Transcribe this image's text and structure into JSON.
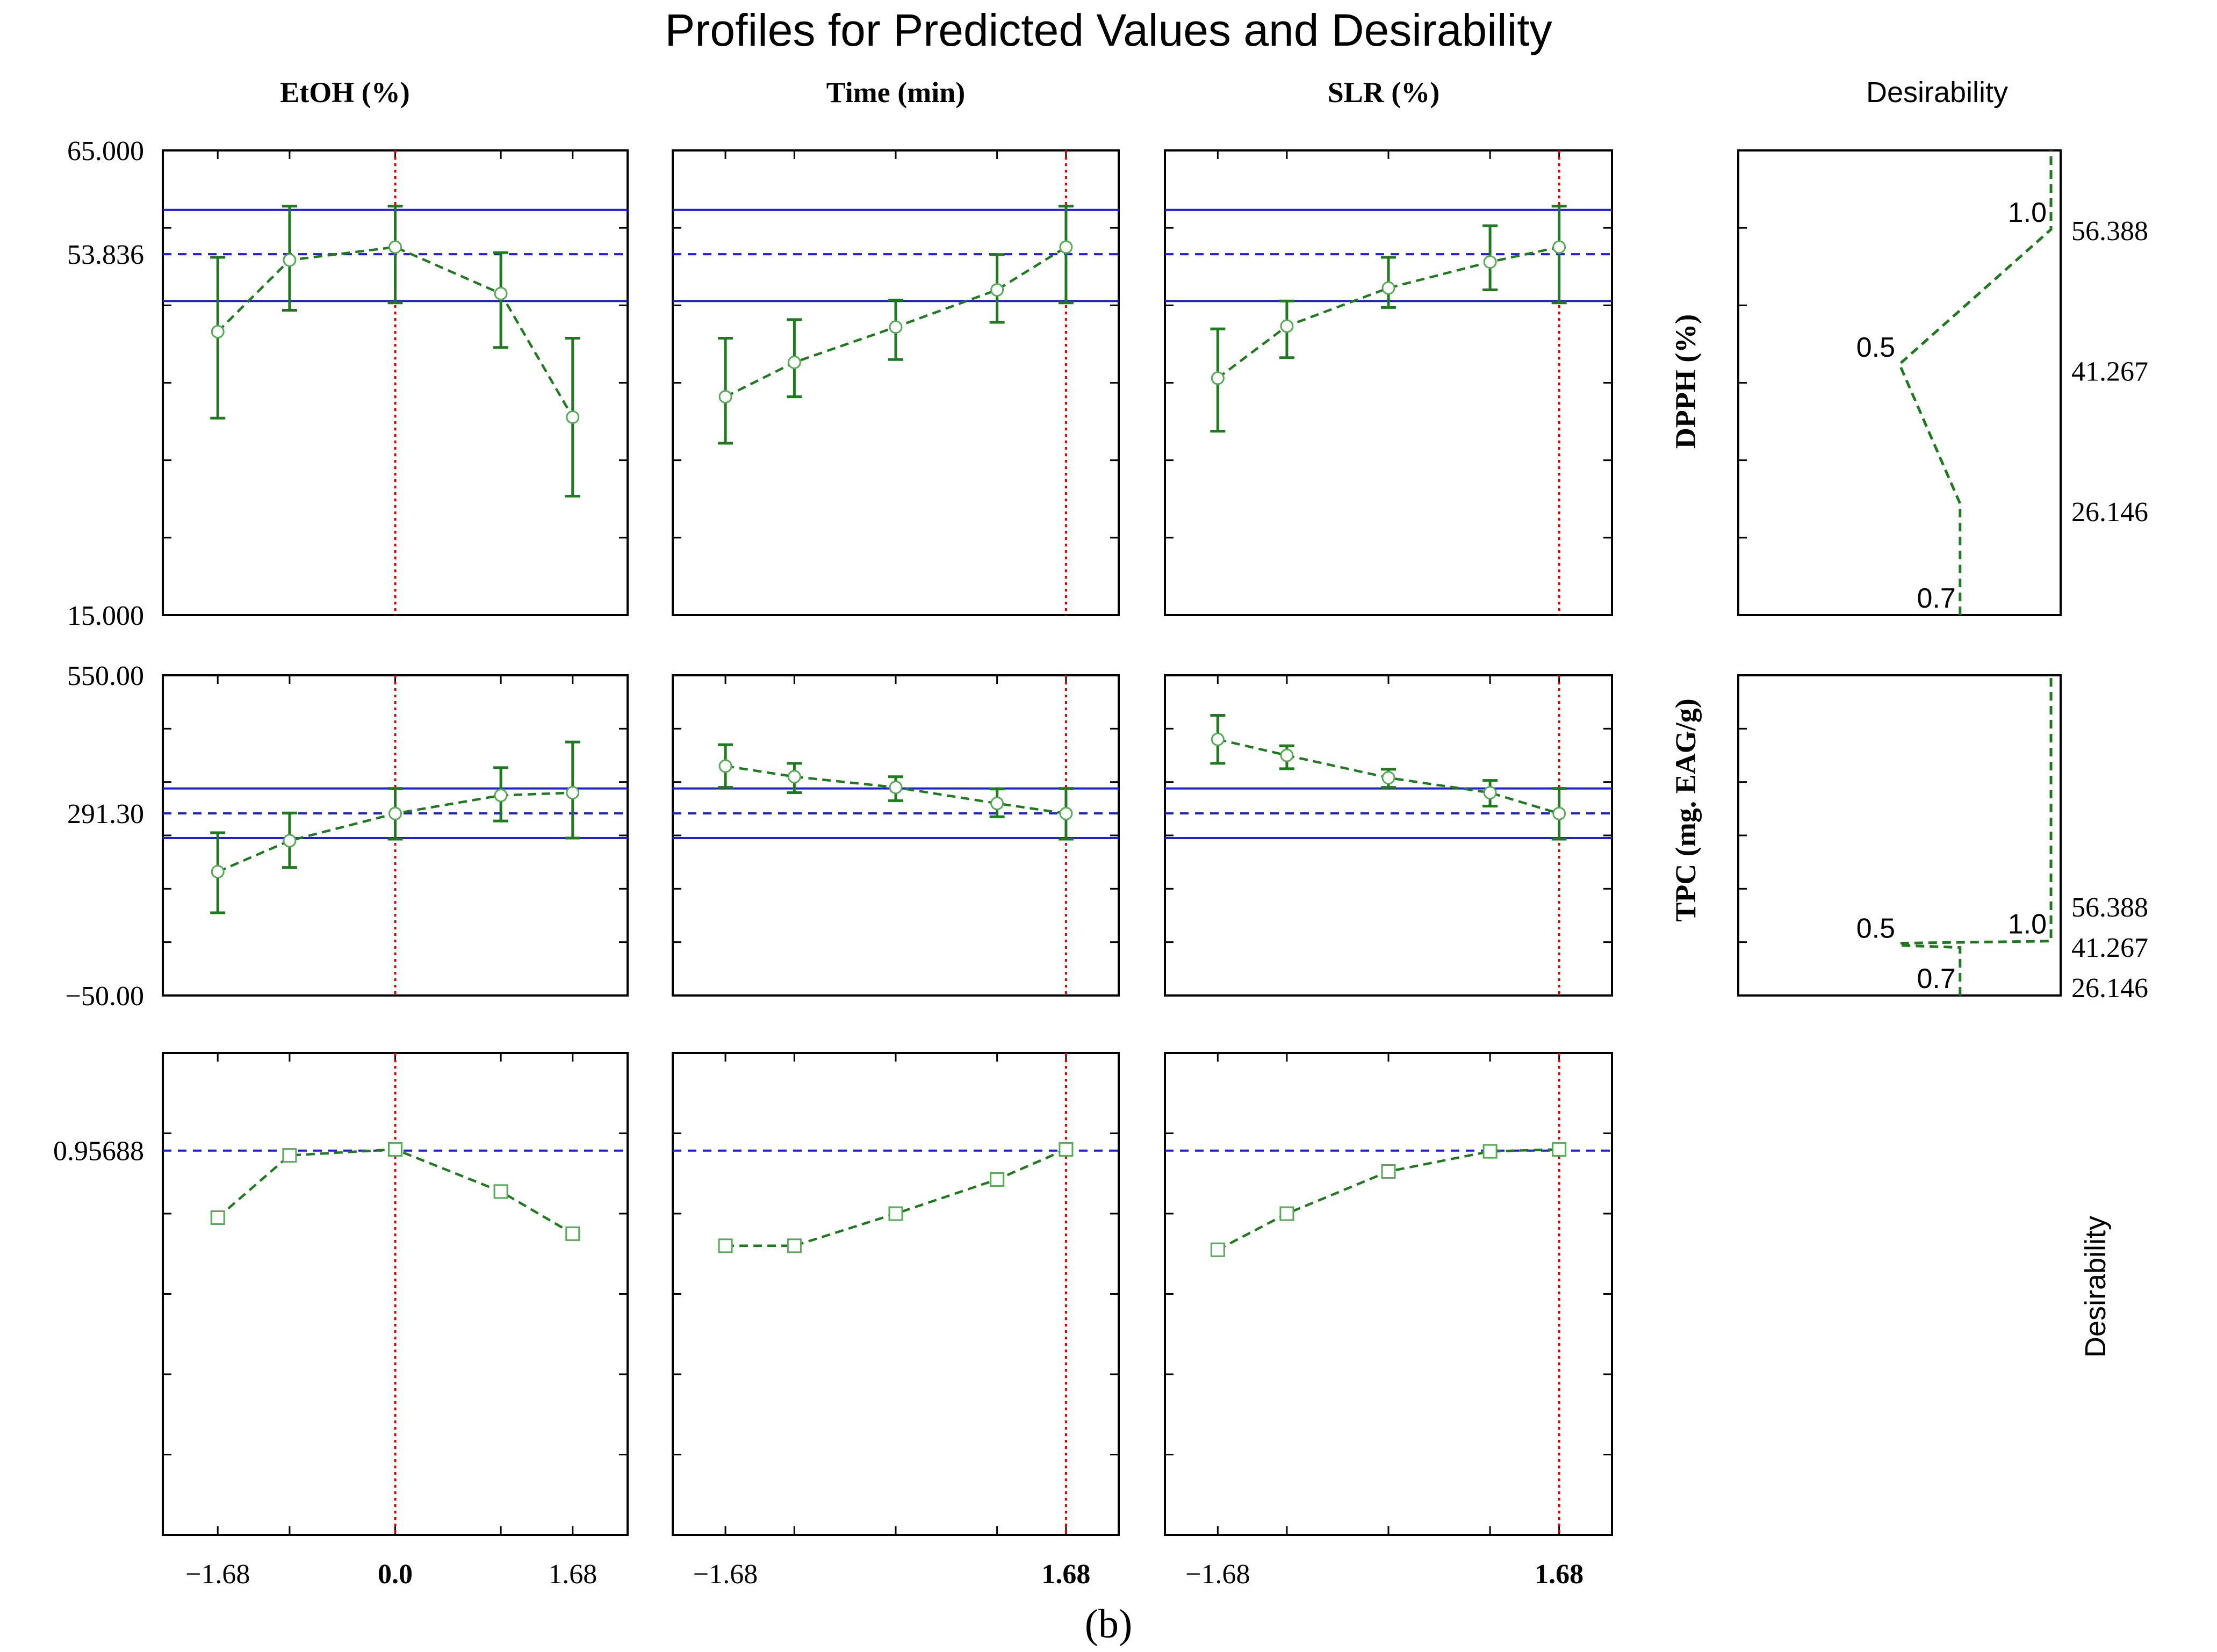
{
  "chart_data": {
    "type": "line",
    "title": "Profiles for Predicted Values and Desirability",
    "subfigure_label": "(b)",
    "column_headers": [
      "EtOH (%)",
      "Time (min)",
      "SLR (%)",
      "Desirability"
    ],
    "x_levels": [
      -1.68,
      -1,
      0,
      1,
      1.68
    ],
    "x_tick_labels": [
      [
        "−1.68",
        "0.0",
        "1.68"
      ],
      [
        "−1.68",
        "1.68"
      ],
      [
        "−1.68",
        "1.68"
      ]
    ],
    "current_levels": [
      0,
      1.68,
      1.68
    ],
    "current_level_labels": [
      "0.0",
      "1.68",
      "1.68"
    ],
    "responses": [
      {
        "name": "DPPH (%)",
        "ylim": [
          15,
          65
        ],
        "y_tick_labels": [
          "65.000",
          "53.836",
          "15.000"
        ],
        "y_tick_values": [
          65,
          53.836,
          15
        ],
        "predicted_at_current": 53.836,
        "ci_band": [
          48.8,
          58.6
        ],
        "series": [
          {
            "factor": "EtOH (%)",
            "values": [
              45.5,
              53.2,
              54.6,
              49.6,
              36.3
            ],
            "lower": [
              36.2,
              47.8,
              48.6,
              43.8,
              27.8
            ],
            "upper": [
              53.5,
              59.0,
              59.0,
              54.0,
              44.8
            ]
          },
          {
            "factor": "Time (min)",
            "values": [
              38.5,
              42.2,
              46.0,
              50.0,
              54.6
            ],
            "lower": [
              33.5,
              38.5,
              42.5,
              46.5,
              48.6
            ],
            "upper": [
              44.8,
              46.8,
              48.9,
              53.8,
              59.0
            ]
          },
          {
            "factor": "SLR (%)",
            "values": [
              40.5,
              46.1,
              50.2,
              53.0,
              54.6
            ],
            "lower": [
              34.8,
              42.7,
              48.1,
              50.0,
              48.6
            ],
            "upper": [
              45.8,
              48.8,
              53.5,
              56.9,
              59.0
            ]
          }
        ],
        "desirability": {
          "y_tick_labels": [
            "56.388",
            "41.267",
            "26.146"
          ],
          "y_tick_values": [
            56.388,
            41.267,
            26.146
          ],
          "annotations": [
            "0.5",
            "0.7",
            "1.0"
          ],
          "function": [
            [
              0.7,
              15.0
            ],
            [
              0.7,
              27.0
            ],
            [
              0.5,
              42.0
            ],
            [
              1.0,
              56.5
            ],
            [
              1.0,
              65.0
            ]
          ]
        }
      },
      {
        "name": "TPC (mg. EAG/g)",
        "ylim": [
          -50,
          550
        ],
        "y_tick_labels": [
          "550.00",
          "291.30",
          "−50.00"
        ],
        "y_tick_values": [
          550,
          291.3,
          -50
        ],
        "predicted_at_current": 291.3,
        "ci_band": [
          245,
          338
        ],
        "series": [
          {
            "factor": "EtOH (%)",
            "values": [
              182,
              240,
              291,
              325,
              330
            ],
            "lower": [
              105,
              190,
              243,
              277,
              245
            ],
            "upper": [
              255,
              292,
              338,
              377,
              425
            ]
          },
          {
            "factor": "Time (min)",
            "values": [
              380,
              360,
              340,
              310,
              291
            ],
            "lower": [
              340,
              330,
              315,
              285,
              243
            ],
            "upper": [
              420,
              385,
              360,
              337,
              338
            ]
          },
          {
            "factor": "SLR (%)",
            "values": [
              430,
              400,
              358,
              330,
              291
            ],
            "lower": [
              385,
              375,
              340,
              305,
              243
            ],
            "upper": [
              475,
              418,
              374,
              353,
              338
            ]
          }
        ],
        "desirability": {
          "y_tick_labels": [
            "56.388",
            "41.267",
            "26.146"
          ],
          "y_tick_values": [
            56.388,
            41.267,
            26.146
          ],
          "annotations": [
            "0.5",
            "0.7",
            "1.0"
          ],
          "function": [
            [
              0.7,
              -50.0
            ],
            [
              0.7,
              40.0
            ],
            [
              0.5,
              44.0
            ],
            [
              0.5,
              48.0
            ],
            [
              1.0,
              52.0
            ],
            [
              1.0,
              550.0
            ]
          ]
        }
      },
      {
        "name": "Desirability",
        "ylim": [
          0,
          1.2
        ],
        "y_tick_labels": [
          "0.95688"
        ],
        "y_tick_values": [
          0.95688
        ],
        "predicted_at_current": 0.95688,
        "series": [
          {
            "factor": "EtOH (%)",
            "values": [
              0.79,
              0.945,
              0.96,
              0.855,
              0.75
            ]
          },
          {
            "factor": "Time (min)",
            "values": [
              0.72,
              0.72,
              0.8,
              0.885,
              0.96
            ]
          },
          {
            "factor": "SLR (%)",
            "values": [
              0.71,
              0.8,
              0.905,
              0.955,
              0.96
            ]
          }
        ]
      }
    ]
  },
  "colors": {
    "series": "#1f7a1f",
    "reference": "#1f1fcc",
    "current": "#e00000",
    "axes": "#000000"
  }
}
